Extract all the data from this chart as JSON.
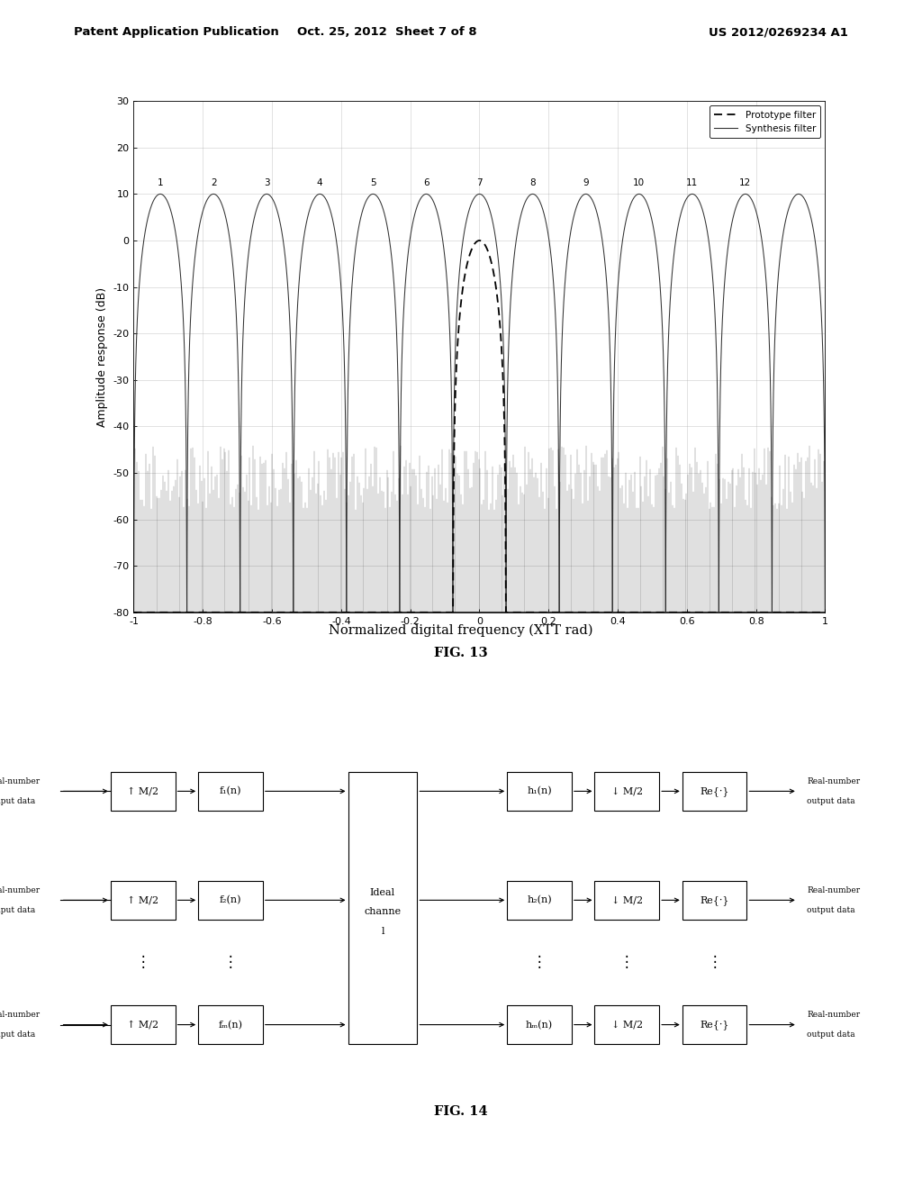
{
  "page_title_left": "Patent Application Publication",
  "page_title_mid": "Oct. 25, 2012  Sheet 7 of 8",
  "page_title_right": "US 2012/0269234 A1",
  "fig13_title": "Normalized digital frequency (XTT rad)",
  "fig13_label": "FIG. 13",
  "fig14_label": "FIG. 14",
  "plot_xlim": [
    -1,
    1
  ],
  "plot_ylim": [
    -80,
    30
  ],
  "plot_xticks": [
    -1,
    -0.8,
    -0.6,
    -0.4,
    -0.2,
    0,
    0.2,
    0.4,
    0.6,
    0.8,
    1
  ],
  "plot_yticks": [
    -80,
    -70,
    -60,
    -50,
    -40,
    -30,
    -20,
    -10,
    0,
    10,
    20,
    30
  ],
  "ylabel": "Amplitude response (dB)",
  "num_synthesis_filters": 13,
  "background_color": "#ffffff",
  "channel_labels": [
    "1",
    "2",
    "3",
    "4",
    "5",
    "6",
    "7",
    "8",
    "9",
    "10",
    "11",
    "12"
  ]
}
